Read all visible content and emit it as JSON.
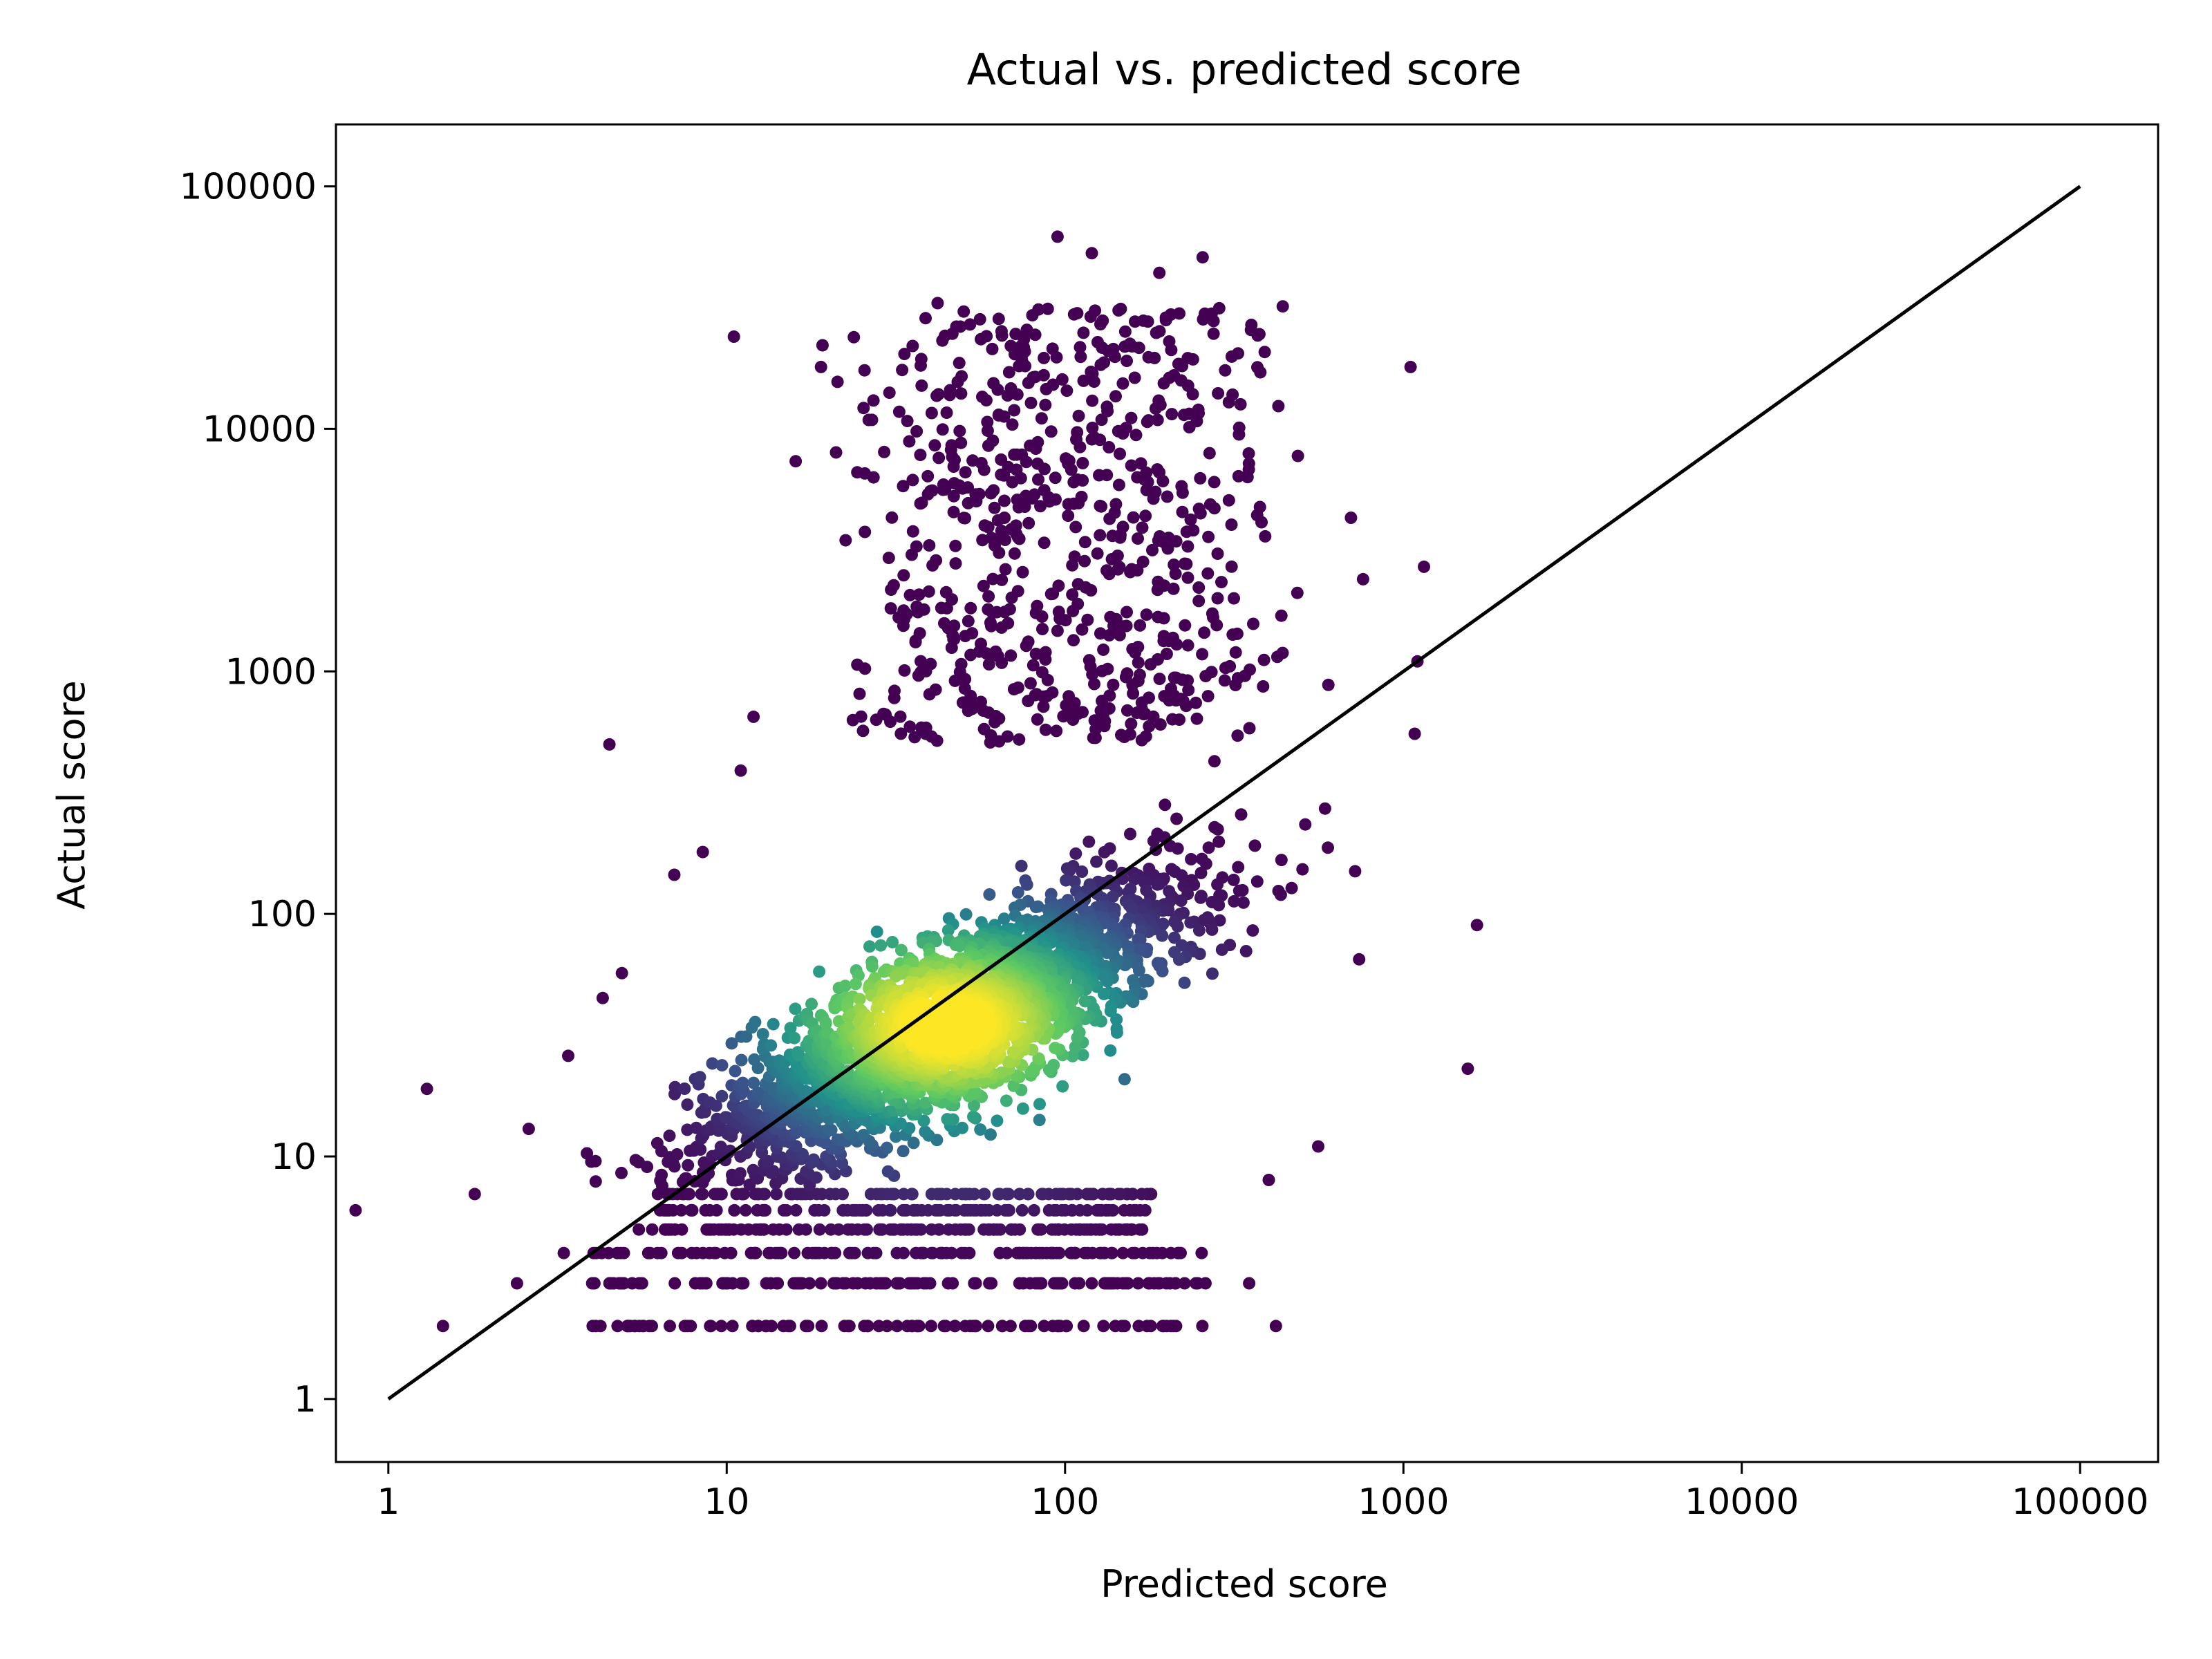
{
  "chart_data": {
    "type": "scatter",
    "title": "Actual vs. predicted score",
    "xlabel": "Predicted score",
    "ylabel": "Actual score",
    "x_scale": "log",
    "y_scale": "log",
    "xlim": [
      0.7,
      170000
    ],
    "ylim": [
      0.55,
      180000
    ],
    "x_ticks": [
      1,
      10,
      100,
      1000,
      10000,
      100000
    ],
    "x_tick_labels": [
      "1",
      "10",
      "100",
      "1000",
      "10000",
      "100000"
    ],
    "y_ticks": [
      1,
      10,
      100,
      1000,
      10000,
      100000
    ],
    "y_tick_labels": [
      "1",
      "10",
      "100",
      "1000",
      "10000",
      "100000"
    ],
    "grid": false,
    "colormap": "viridis",
    "colors": {
      "low_density": "#440154",
      "mid_density": "#21918c",
      "high_density": "#fde725",
      "reference_line": "#000000"
    },
    "reference_line": {
      "x": [
        1,
        100000
      ],
      "y": [
        1,
        100000
      ]
    },
    "series": [
      {
        "density_center": [
          45,
          35
        ],
        "discrete_y_levels": [
          2,
          3,
          4,
          5,
          6,
          7
        ],
        "points": [
          [
            0.8,
            6
          ],
          [
            1.3,
            19
          ],
          [
            1.45,
            2
          ],
          [
            1.8,
            7
          ],
          [
            2.4,
            3
          ],
          [
            2.6,
            13
          ],
          [
            3.3,
            4
          ],
          [
            3.4,
            26
          ],
          [
            4.5,
            500
          ],
          [
            4.3,
            45
          ],
          [
            4.9,
            57
          ],
          [
            5.5,
            5
          ],
          [
            10.5,
            24000
          ],
          [
            19,
            18000
          ],
          [
            12,
            650
          ],
          [
            11,
            390
          ],
          [
            7,
            145
          ],
          [
            8.5,
            180
          ],
          [
            1050,
            18000
          ],
          [
            1100,
            1100
          ],
          [
            1150,
            2700
          ],
          [
            1650,
            90
          ],
          [
            1550,
            23
          ],
          [
            560,
            11
          ],
          [
            700,
            4300
          ],
          [
            720,
            150
          ],
          [
            740,
            65
          ],
          [
            600,
            880
          ],
          [
            760,
            2400
          ],
          [
            95,
            62000
          ],
          [
            120,
            53000
          ],
          [
            255,
            51000
          ],
          [
            440,
            32000
          ],
          [
            190,
            44000
          ],
          [
            33,
            17500
          ],
          [
            42,
            33000
          ],
          [
            420,
            2
          ],
          [
            350,
            3
          ],
          [
            260,
            3
          ],
          [
            400,
            8
          ]
        ]
      }
    ]
  }
}
